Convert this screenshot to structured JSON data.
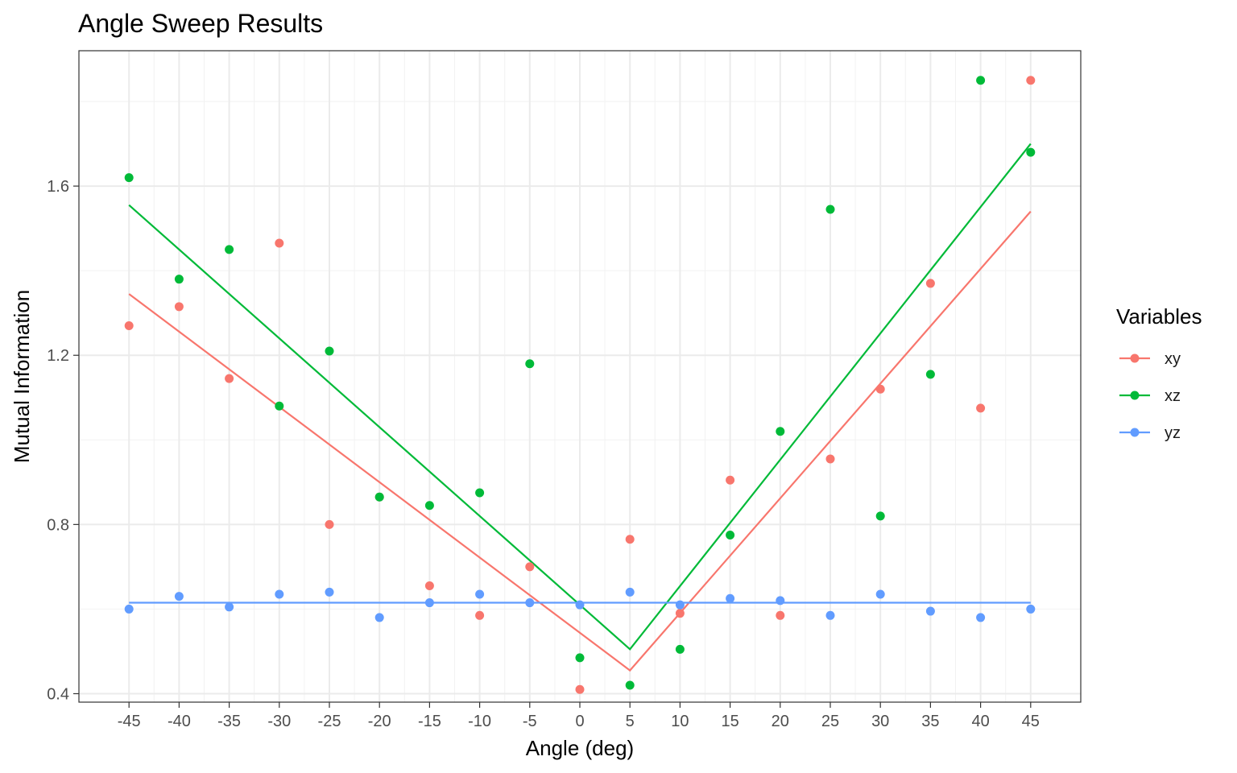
{
  "chart_data": {
    "type": "scatter",
    "title": "Angle Sweep Results",
    "xlabel": "Angle (deg)",
    "ylabel": "Mutual Information",
    "xlim": [
      -50,
      50
    ],
    "ylim": [
      0.38,
      1.92
    ],
    "x_ticks": [
      -45,
      -40,
      -35,
      -30,
      -25,
      -20,
      -15,
      -10,
      -5,
      0,
      5,
      10,
      15,
      20,
      25,
      30,
      35,
      40,
      45
    ],
    "x_tick_labels": [
      "-45",
      "-40",
      "-35",
      "-30",
      "-25",
      "-20",
      "-15",
      "-10",
      "-5",
      "0",
      "5",
      "10",
      "15",
      "20",
      "25",
      "30",
      "35",
      "40",
      "45"
    ],
    "y_ticks": [
      0.4,
      0.8,
      1.2,
      1.6
    ],
    "y_tick_labels": [
      "0.4",
      "0.8",
      "1.2",
      "1.6"
    ],
    "grid": true,
    "legend": {
      "title": "Variables",
      "position": "right"
    },
    "series": [
      {
        "name": "xy",
        "color": "#F8766D",
        "x": [
          -45,
          -40,
          -35,
          -30,
          -25,
          -20,
          -15,
          -10,
          -5,
          0,
          5,
          10,
          15,
          20,
          25,
          30,
          35,
          40,
          45
        ],
        "y": [
          1.27,
          1.315,
          1.145,
          1.465,
          0.8,
          0.865,
          0.655,
          0.585,
          0.7,
          0.41,
          0.765,
          0.59,
          0.905,
          0.585,
          0.955,
          1.12,
          1.37,
          1.075,
          1.85
        ],
        "fit": [
          [
            -45,
            1.345
          ],
          [
            5,
            0.455
          ],
          [
            45,
            1.54
          ]
        ]
      },
      {
        "name": "xz",
        "color": "#00BA38",
        "x": [
          -45,
          -40,
          -35,
          -30,
          -25,
          -20,
          -15,
          -10,
          -5,
          0,
          5,
          10,
          15,
          20,
          25,
          30,
          35,
          40,
          45
        ],
        "y": [
          1.62,
          1.38,
          1.45,
          1.08,
          1.21,
          0.865,
          0.845,
          0.875,
          1.18,
          0.485,
          0.42,
          0.505,
          0.775,
          1.02,
          1.545,
          0.82,
          1.155,
          1.85,
          1.68
        ],
        "fit": [
          [
            -45,
            1.555
          ],
          [
            5,
            0.505
          ],
          [
            45,
            1.7
          ]
        ]
      },
      {
        "name": "yz",
        "color": "#619CFF",
        "x": [
          -45,
          -40,
          -35,
          -30,
          -25,
          -20,
          -15,
          -10,
          -5,
          0,
          5,
          10,
          15,
          20,
          25,
          30,
          35,
          40,
          45
        ],
        "y": [
          0.6,
          0.63,
          0.605,
          0.635,
          0.64,
          0.58,
          0.615,
          0.635,
          0.615,
          0.61,
          0.64,
          0.61,
          0.625,
          0.62,
          0.585,
          0.635,
          0.595,
          0.58,
          0.6
        ],
        "fit": [
          [
            -45,
            0.615
          ],
          [
            45,
            0.615
          ]
        ]
      }
    ]
  }
}
